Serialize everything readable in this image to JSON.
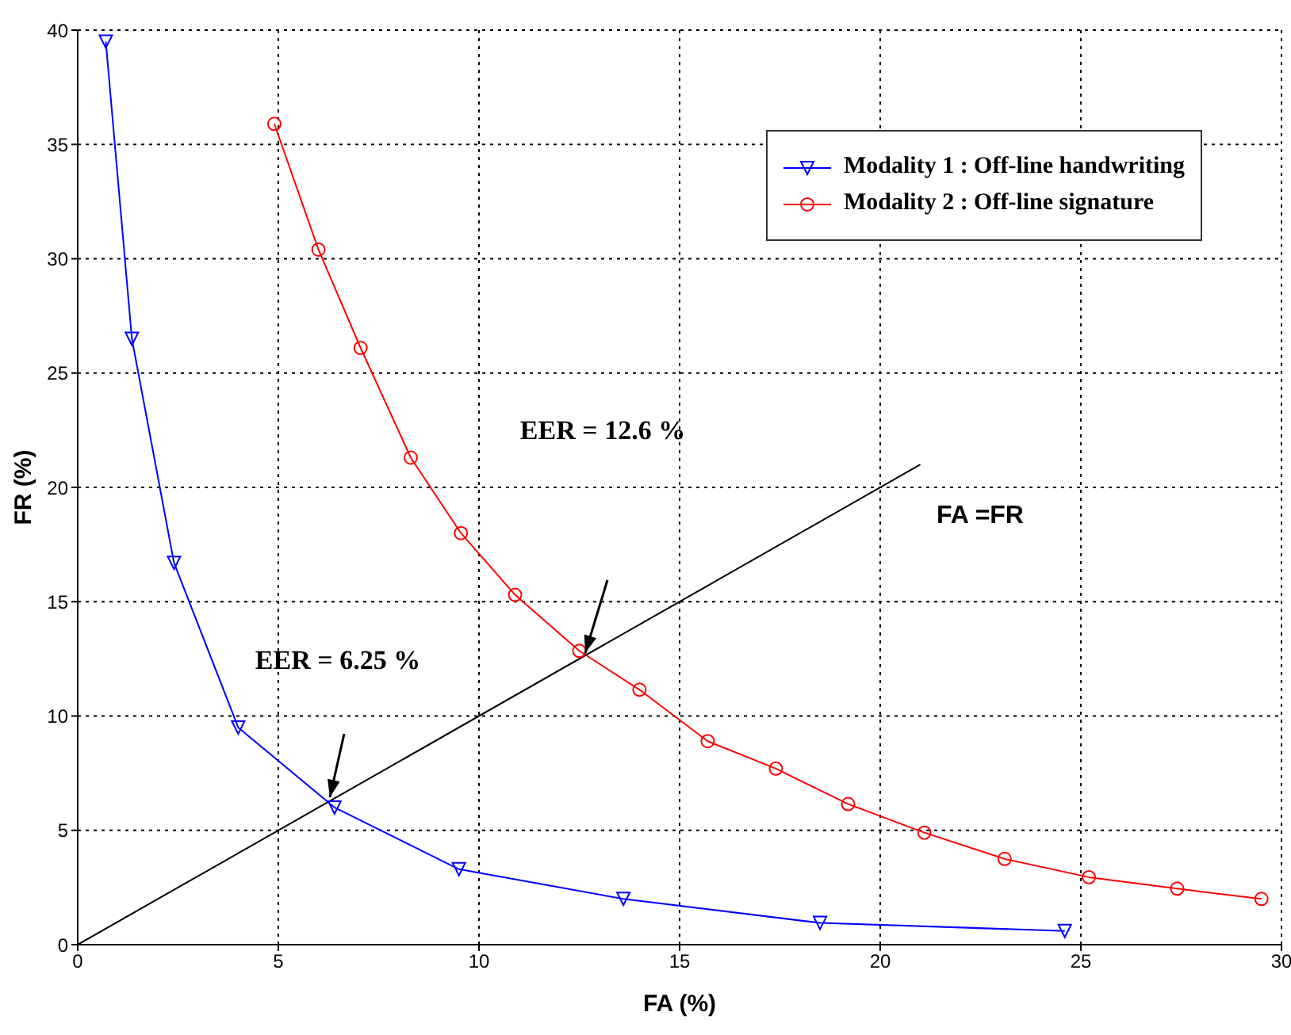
{
  "chart_data": {
    "type": "line",
    "xlabel": "FA (%)",
    "ylabel": "FR (%)",
    "xlim": [
      0,
      30
    ],
    "xticks": [
      0,
      5,
      10,
      15,
      20,
      25,
      30
    ],
    "ylim": [
      0,
      40
    ],
    "yticks": [
      0,
      5,
      10,
      15,
      20,
      25,
      30,
      35,
      40
    ],
    "grid": true,
    "legend": "top right",
    "line_style": "solid",
    "series": [
      {
        "name": "Modality 1 : Off-line handwriting",
        "color": "#0000ff",
        "marker": "triangle",
        "x": [
          0.7,
          1.35,
          2.4,
          4.0,
          6.4,
          9.5,
          13.6,
          18.5,
          24.6
        ],
        "values": [
          39.5,
          26.5,
          16.7,
          9.5,
          6.0,
          3.3,
          2.0,
          0.95,
          0.6
        ]
      },
      {
        "name": "Modality 2 : Off-line signature",
        "color": "#ff0000",
        "marker": "circle",
        "x": [
          4.9,
          6.0,
          7.05,
          8.3,
          9.55,
          10.9,
          12.5,
          14.0,
          15.7,
          17.4,
          19.2,
          21.1,
          23.1,
          25.2,
          27.4,
          29.5
        ],
        "values": [
          35.9,
          30.4,
          26.1,
          21.3,
          18.0,
          15.3,
          12.85,
          11.15,
          8.9,
          7.7,
          6.15,
          4.9,
          3.75,
          2.95,
          2.45,
          2.0
        ]
      },
      {
        "type": "line",
        "color": "#000000",
        "marker": "none",
        "x": [
          0,
          21
        ],
        "values": [
          0,
          21
        ]
      }
    ],
    "annotations": [
      "EER = 12.6 %",
      "EER = 6.25 %",
      "FA =FR"
    ]
  }
}
